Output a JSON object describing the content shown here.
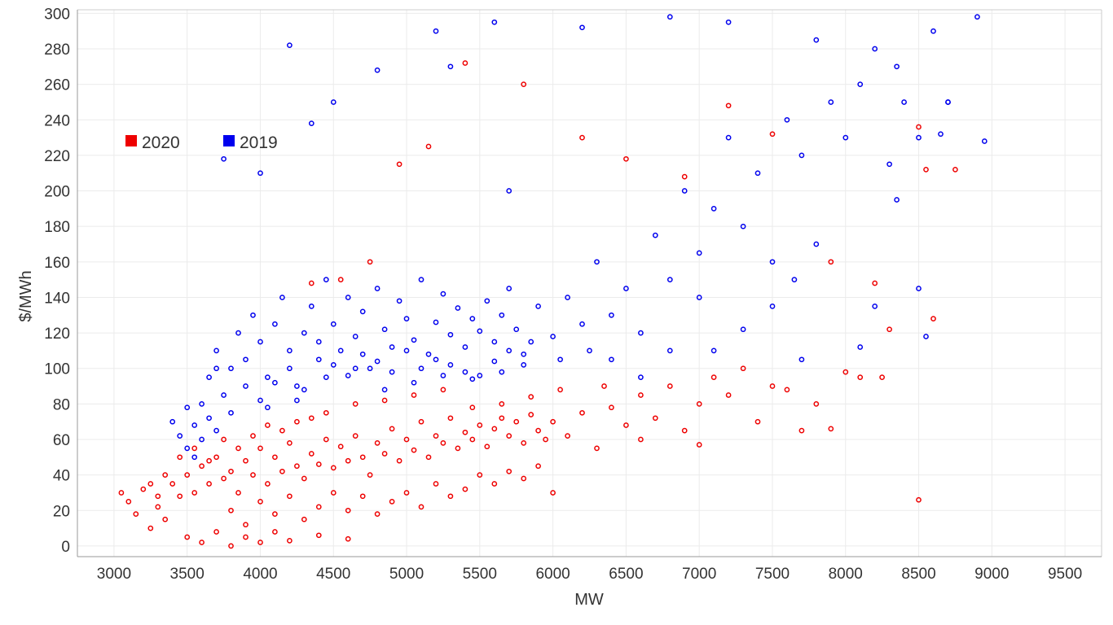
{
  "chart_data": {
    "type": "scatter",
    "title": "",
    "xlabel": "MW",
    "ylabel": "$/MWh",
    "xlim": [
      2750,
      9750
    ],
    "ylim": [
      -6,
      302
    ],
    "x_ticks": [
      3000,
      3500,
      4000,
      4500,
      5000,
      5500,
      6000,
      6500,
      7000,
      7500,
      8000,
      8500,
      9000,
      9500
    ],
    "y_ticks": [
      0,
      20,
      40,
      60,
      80,
      100,
      120,
      140,
      160,
      180,
      200,
      220,
      240,
      260,
      280,
      300
    ],
    "grid": true,
    "legend_position": "upper-left",
    "marker": "open-circle",
    "series": [
      {
        "name": "2019",
        "color": "#0000ee",
        "points": [
          [
            3400,
            70
          ],
          [
            3500,
            55
          ],
          [
            3550,
            68
          ],
          [
            3600,
            80
          ],
          [
            3650,
            95
          ],
          [
            3700,
            110
          ],
          [
            3750,
            85
          ],
          [
            3800,
            100
          ],
          [
            3850,
            120
          ],
          [
            3900,
            105
          ],
          [
            3950,
            130
          ],
          [
            4000,
            115
          ],
          [
            4050,
            95
          ],
          [
            4100,
            125
          ],
          [
            4150,
            140
          ],
          [
            4200,
            110
          ],
          [
            4250,
            90
          ],
          [
            4300,
            120
          ],
          [
            4350,
            135
          ],
          [
            4400,
            105
          ],
          [
            4450,
            150
          ],
          [
            4500,
            125
          ],
          [
            4550,
            110
          ],
          [
            4600,
            140
          ],
          [
            4650,
            118
          ],
          [
            4700,
            132
          ],
          [
            4750,
            100
          ],
          [
            4800,
            145
          ],
          [
            4850,
            122
          ],
          [
            4900,
            112
          ],
          [
            4950,
            138
          ],
          [
            5000,
            128
          ],
          [
            5050,
            116
          ],
          [
            5100,
            150
          ],
          [
            5150,
            108
          ],
          [
            5200,
            126
          ],
          [
            5250,
            142
          ],
          [
            5300,
            119
          ],
          [
            5350,
            134
          ],
          [
            5400,
            112
          ],
          [
            5450,
            128
          ],
          [
            5500,
            121
          ],
          [
            5550,
            138
          ],
          [
            5600,
            115
          ],
          [
            5650,
            130
          ],
          [
            5700,
            145
          ],
          [
            5750,
            122
          ],
          [
            5800,
            108
          ],
          [
            5900,
            135
          ],
          [
            6000,
            118
          ],
          [
            6100,
            140
          ],
          [
            6200,
            125
          ],
          [
            6300,
            160
          ],
          [
            6400,
            130
          ],
          [
            6500,
            145
          ],
          [
            6600,
            120
          ],
          [
            6700,
            175
          ],
          [
            6800,
            150
          ],
          [
            6900,
            200
          ],
          [
            7000,
            165
          ],
          [
            7100,
            190
          ],
          [
            7200,
            230
          ],
          [
            7300,
            180
          ],
          [
            7400,
            210
          ],
          [
            7500,
            160
          ],
          [
            7600,
            240
          ],
          [
            7700,
            220
          ],
          [
            7800,
            170
          ],
          [
            7900,
            250
          ],
          [
            8000,
            230
          ],
          [
            8100,
            260
          ],
          [
            8200,
            280
          ],
          [
            8300,
            215
          ],
          [
            8400,
            250
          ],
          [
            8500,
            230
          ],
          [
            8600,
            290
          ],
          [
            8700,
            250
          ],
          [
            8900,
            298
          ],
          [
            8950,
            228
          ],
          [
            8350,
            195
          ],
          [
            8100,
            112
          ],
          [
            8200,
            135
          ],
          [
            7700,
            105
          ],
          [
            7500,
            135
          ],
          [
            7100,
            110
          ],
          [
            6800,
            110
          ],
          [
            6400,
            105
          ],
          [
            5700,
            200
          ],
          [
            5300,
            270
          ],
          [
            4800,
            268
          ],
          [
            4350,
            238
          ],
          [
            4200,
            282
          ],
          [
            4000,
            210
          ],
          [
            3750,
            218
          ],
          [
            4500,
            250
          ],
          [
            5200,
            290
          ],
          [
            5600,
            295
          ],
          [
            6200,
            292
          ],
          [
            6800,
            298
          ],
          [
            7200,
            295
          ],
          [
            7800,
            285
          ],
          [
            8500,
            145
          ],
          [
            8550,
            118
          ],
          [
            8650,
            232
          ],
          [
            8700,
            250
          ],
          [
            8350,
            270
          ],
          [
            3700,
            100
          ],
          [
            3800,
            75
          ],
          [
            4000,
            82
          ],
          [
            4100,
            92
          ],
          [
            4200,
            100
          ],
          [
            4300,
            88
          ],
          [
            4400,
            115
          ],
          [
            4500,
            102
          ],
          [
            4600,
            96
          ],
          [
            4700,
            108
          ],
          [
            4800,
            104
          ],
          [
            4900,
            98
          ],
          [
            5000,
            110
          ],
          [
            5100,
            100
          ],
          [
            5200,
            105
          ],
          [
            5300,
            102
          ],
          [
            5400,
            98
          ],
          [
            5500,
            96
          ],
          [
            5600,
            104
          ],
          [
            5700,
            110
          ],
          [
            5800,
            102
          ],
          [
            3600,
            60
          ],
          [
            3650,
            72
          ],
          [
            3550,
            50
          ],
          [
            3450,
            62
          ],
          [
            3500,
            78
          ],
          [
            3700,
            65
          ],
          [
            3900,
            90
          ],
          [
            4050,
            78
          ],
          [
            4250,
            82
          ],
          [
            4450,
            95
          ],
          [
            4650,
            100
          ],
          [
            4850,
            88
          ],
          [
            5050,
            92
          ],
          [
            5250,
            96
          ],
          [
            5450,
            94
          ],
          [
            5650,
            98
          ],
          [
            5850,
            115
          ],
          [
            6050,
            105
          ],
          [
            6250,
            110
          ],
          [
            6600,
            95
          ],
          [
            7000,
            140
          ],
          [
            7300,
            122
          ],
          [
            7650,
            150
          ]
        ]
      },
      {
        "name": "2020",
        "color": "#ee0000",
        "points": [
          [
            3050,
            30
          ],
          [
            3100,
            25
          ],
          [
            3150,
            18
          ],
          [
            3200,
            32
          ],
          [
            3250,
            10
          ],
          [
            3300,
            22
          ],
          [
            3350,
            15
          ],
          [
            3400,
            35
          ],
          [
            3450,
            28
          ],
          [
            3500,
            40
          ],
          [
            3550,
            30
          ],
          [
            3600,
            45
          ],
          [
            3650,
            35
          ],
          [
            3700,
            50
          ],
          [
            3750,
            38
          ],
          [
            3800,
            42
          ],
          [
            3850,
            30
          ],
          [
            3900,
            48
          ],
          [
            3950,
            40
          ],
          [
            4000,
            55
          ],
          [
            4050,
            35
          ],
          [
            4100,
            50
          ],
          [
            4150,
            42
          ],
          [
            4200,
            58
          ],
          [
            4250,
            45
          ],
          [
            4300,
            38
          ],
          [
            4350,
            52
          ],
          [
            4400,
            46
          ],
          [
            4450,
            60
          ],
          [
            4500,
            44
          ],
          [
            4550,
            56
          ],
          [
            4600,
            48
          ],
          [
            4650,
            62
          ],
          [
            4700,
            50
          ],
          [
            4750,
            40
          ],
          [
            4800,
            58
          ],
          [
            4850,
            52
          ],
          [
            4900,
            66
          ],
          [
            4950,
            48
          ],
          [
            5000,
            60
          ],
          [
            5050,
            54
          ],
          [
            5100,
            70
          ],
          [
            5150,
            50
          ],
          [
            5200,
            62
          ],
          [
            5250,
            58
          ],
          [
            5300,
            72
          ],
          [
            5350,
            55
          ],
          [
            5400,
            64
          ],
          [
            5450,
            60
          ],
          [
            5500,
            68
          ],
          [
            5550,
            56
          ],
          [
            5600,
            66
          ],
          [
            5650,
            72
          ],
          [
            5700,
            62
          ],
          [
            5750,
            70
          ],
          [
            5800,
            58
          ],
          [
            5850,
            74
          ],
          [
            5900,
            65
          ],
          [
            5950,
            60
          ],
          [
            6000,
            70
          ],
          [
            6100,
            62
          ],
          [
            6200,
            75
          ],
          [
            6300,
            55
          ],
          [
            6400,
            78
          ],
          [
            6500,
            68
          ],
          [
            6600,
            85
          ],
          [
            6700,
            72
          ],
          [
            6800,
            90
          ],
          [
            6900,
            65
          ],
          [
            7000,
            80
          ],
          [
            7100,
            95
          ],
          [
            7200,
            85
          ],
          [
            7300,
            100
          ],
          [
            7400,
            70
          ],
          [
            7500,
            90
          ],
          [
            7600,
            88
          ],
          [
            7700,
            65
          ],
          [
            7800,
            80
          ],
          [
            7900,
            66
          ],
          [
            8000,
            98
          ],
          [
            8100,
            95
          ],
          [
            8250,
            95
          ],
          [
            8300,
            122
          ],
          [
            8500,
            26
          ],
          [
            8600,
            128
          ],
          [
            8750,
            212
          ],
          [
            8550,
            212
          ],
          [
            8500,
            236
          ],
          [
            8200,
            148
          ],
          [
            7900,
            160
          ],
          [
            7500,
            232
          ],
          [
            7200,
            248
          ],
          [
            6900,
            208
          ],
          [
            6500,
            218
          ],
          [
            6200,
            230
          ],
          [
            5800,
            260
          ],
          [
            5400,
            272
          ],
          [
            5150,
            225
          ],
          [
            4950,
            215
          ],
          [
            4750,
            160
          ],
          [
            4550,
            150
          ],
          [
            4350,
            148
          ],
          [
            3800,
            20
          ],
          [
            3900,
            12
          ],
          [
            4000,
            25
          ],
          [
            4100,
            18
          ],
          [
            4200,
            28
          ],
          [
            4300,
            15
          ],
          [
            4400,
            22
          ],
          [
            4500,
            30
          ],
          [
            4600,
            20
          ],
          [
            4700,
            28
          ],
          [
            4800,
            18
          ],
          [
            4900,
            25
          ],
          [
            5000,
            30
          ],
          [
            5100,
            22
          ],
          [
            5200,
            35
          ],
          [
            5300,
            28
          ],
          [
            5400,
            32
          ],
          [
            5500,
            40
          ],
          [
            5600,
            35
          ],
          [
            5700,
            42
          ],
          [
            5800,
            38
          ],
          [
            5900,
            45
          ],
          [
            6000,
            30
          ],
          [
            3500,
            5
          ],
          [
            3600,
            2
          ],
          [
            3700,
            8
          ],
          [
            3800,
            0
          ],
          [
            3900,
            5
          ],
          [
            4000,
            2
          ],
          [
            4100,
            8
          ],
          [
            4200,
            3
          ],
          [
            4400,
            6
          ],
          [
            4600,
            4
          ],
          [
            3300,
            28
          ],
          [
            3350,
            40
          ],
          [
            3250,
            35
          ],
          [
            3450,
            50
          ],
          [
            3550,
            55
          ],
          [
            3650,
            48
          ],
          [
            3750,
            60
          ],
          [
            3850,
            55
          ],
          [
            3950,
            62
          ],
          [
            4050,
            68
          ],
          [
            4150,
            65
          ],
          [
            4250,
            70
          ],
          [
            4350,
            72
          ],
          [
            4450,
            75
          ],
          [
            4650,
            80
          ],
          [
            4850,
            82
          ],
          [
            5050,
            85
          ],
          [
            5250,
            88
          ],
          [
            5450,
            78
          ],
          [
            5650,
            80
          ],
          [
            5850,
            84
          ],
          [
            6050,
            88
          ],
          [
            6350,
            90
          ],
          [
            6600,
            60
          ],
          [
            7000,
            57
          ]
        ]
      }
    ]
  }
}
